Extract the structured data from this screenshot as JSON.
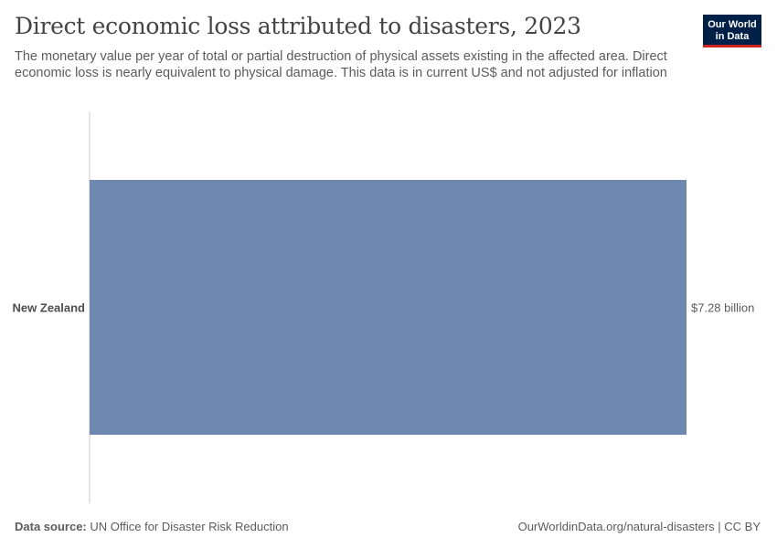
{
  "header": {
    "title": "Direct economic loss attributed to disasters, 2023",
    "subtitle": "The monetary value per year of total or partial destruction of physical assets existing in the affected area. Direct economic loss is nearly equivalent to physical damage. This data is in current US$ and not adjusted for inflation"
  },
  "logo": {
    "line1": "Our World",
    "line2": "in Data",
    "bg": "#002147",
    "accent": "#ce261e"
  },
  "footer": {
    "source_label": "Data source:",
    "source_text": " UN Office for Disaster Risk Reduction",
    "url_license": "OurWorldinData.org/natural-disasters | CC BY"
  },
  "chart_data": {
    "type": "bar",
    "orientation": "horizontal",
    "categories": [
      "New Zealand"
    ],
    "values": [
      7280000000
    ],
    "value_labels": [
      "$7.28 billion"
    ],
    "xlim": [
      0,
      7280000000
    ],
    "bar_color": "#6f88b0",
    "axis_color": "#cccccc"
  }
}
